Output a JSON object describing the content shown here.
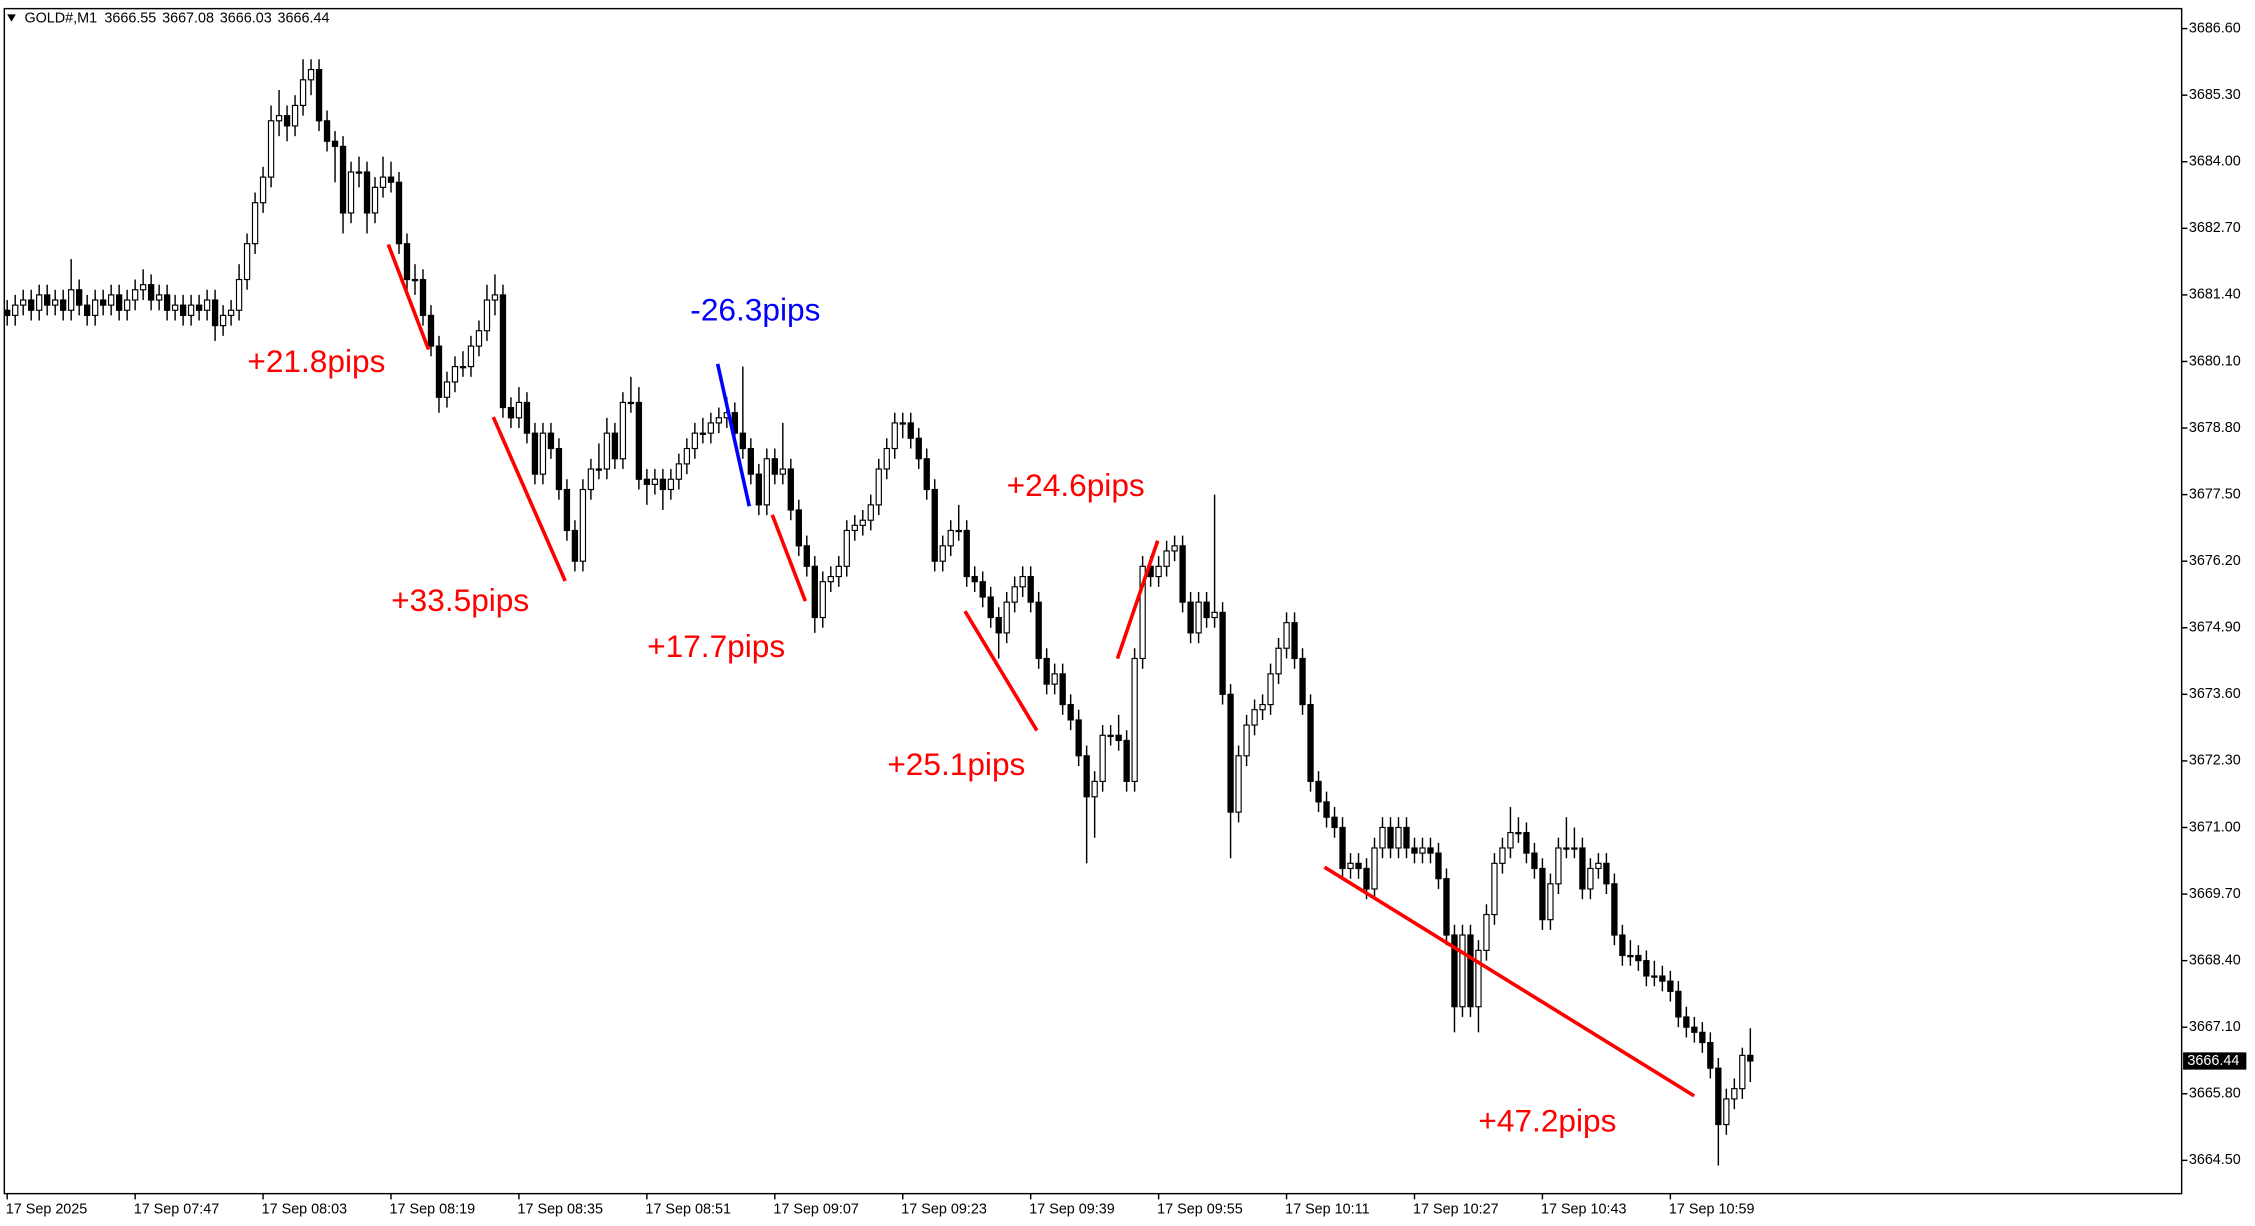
{
  "chart_data": {
    "type": "candlestick",
    "symbol": "GOLD#,M1",
    "bull_color": "#ffffff",
    "bear_color": "#000000",
    "wick_color": "#000000",
    "ylim": [
      3663.85,
      3686.99
    ],
    "yticks": [
      {
        "value": 3686.6,
        "label": "3686.60"
      },
      {
        "value": 3685.3,
        "label": "3685.30"
      },
      {
        "value": 3684.0,
        "label": "3684.00"
      },
      {
        "value": 3682.7,
        "label": "3682.70"
      },
      {
        "value": 3681.4,
        "label": "3681.40"
      },
      {
        "value": 3680.1,
        "label": "3680.10"
      },
      {
        "value": 3678.8,
        "label": "3678.80"
      },
      {
        "value": 3677.5,
        "label": "3677.50"
      },
      {
        "value": 3676.2,
        "label": "3676.20"
      },
      {
        "value": 3674.9,
        "label": "3674.90"
      },
      {
        "value": 3673.6,
        "label": "3673.60"
      },
      {
        "value": 3672.3,
        "label": "3672.30"
      },
      {
        "value": 3671.0,
        "label": "3671.00"
      },
      {
        "value": 3669.7,
        "label": "3669.70"
      },
      {
        "value": 3668.4,
        "label": "3668.40"
      },
      {
        "value": 3667.1,
        "label": "3667.10"
      },
      {
        "value": 3665.8,
        "label": "3665.80"
      },
      {
        "value": 3664.5,
        "label": "3664.50"
      }
    ],
    "x_labels": [
      "17 Sep 2025",
      "17 Sep 07:47",
      "17 Sep 08:03",
      "17 Sep 08:19",
      "17 Sep 08:35",
      "17 Sep 08:51",
      "17 Sep 09:07",
      "17 Sep 09:23",
      "17 Sep 09:39",
      "17 Sep 09:55",
      "17 Sep 10:11",
      "17 Sep 10:27",
      "17 Sep 10:43",
      "17 Sep 10:59"
    ],
    "annotations": [
      {
        "text": "+21.8pips",
        "color": "#ff0000"
      },
      {
        "text": "+33.5pips",
        "color": "#ff0000"
      },
      {
        "text": "-26.3pips",
        "color": "#0000ff"
      },
      {
        "text": "+17.7pips",
        "color": "#ff0000"
      },
      {
        "text": "+25.1pips",
        "color": "#ff0000"
      },
      {
        "text": "+24.6pips",
        "color": "#ff0000"
      },
      {
        "text": "+47.2pips",
        "color": "#ff0000"
      }
    ],
    "candles": [
      [
        3681.1,
        3681.3,
        3680.8,
        3681.0
      ],
      [
        3681.0,
        3681.4,
        3680.8,
        3681.2
      ],
      [
        3681.2,
        3681.5,
        3681.0,
        3681.3
      ],
      [
        3681.3,
        3681.5,
        3680.9,
        3681.1
      ],
      [
        3681.1,
        3681.6,
        3680.9,
        3681.4
      ],
      [
        3681.4,
        3681.6,
        3681.0,
        3681.2
      ],
      [
        3681.2,
        3681.5,
        3681.0,
        3681.3
      ],
      [
        3681.3,
        3681.5,
        3680.9,
        3681.1
      ],
      [
        3681.1,
        3682.1,
        3680.9,
        3681.5
      ],
      [
        3681.5,
        3681.7,
        3681.0,
        3681.2
      ],
      [
        3681.2,
        3681.4,
        3680.8,
        3681.0
      ],
      [
        3681.0,
        3681.5,
        3680.8,
        3681.3
      ],
      [
        3681.3,
        3681.5,
        3681.0,
        3681.2
      ],
      [
        3681.2,
        3681.6,
        3681.0,
        3681.4
      ],
      [
        3681.4,
        3681.6,
        3680.9,
        3681.1
      ],
      [
        3681.1,
        3681.5,
        3680.9,
        3681.3
      ],
      [
        3681.3,
        3681.7,
        3681.1,
        3681.5
      ],
      [
        3681.5,
        3681.9,
        3681.3,
        3681.6
      ],
      [
        3681.6,
        3681.8,
        3681.1,
        3681.3
      ],
      [
        3681.3,
        3681.6,
        3681.1,
        3681.4
      ],
      [
        3681.4,
        3681.6,
        3680.9,
        3681.1
      ],
      [
        3681.1,
        3681.4,
        3680.9,
        3681.2
      ],
      [
        3681.2,
        3681.4,
        3680.8,
        3681.0
      ],
      [
        3681.0,
        3681.4,
        3680.8,
        3681.2
      ],
      [
        3681.2,
        3681.4,
        3680.9,
        3681.1
      ],
      [
        3681.1,
        3681.5,
        3680.9,
        3681.3
      ],
      [
        3681.3,
        3681.5,
        3680.5,
        3680.8
      ],
      [
        3680.8,
        3681.2,
        3680.6,
        3681.0
      ],
      [
        3681.0,
        3681.3,
        3680.8,
        3681.1
      ],
      [
        3681.1,
        3682.0,
        3680.9,
        3681.7
      ],
      [
        3681.7,
        3682.6,
        3681.5,
        3682.4
      ],
      [
        3682.4,
        3683.4,
        3682.2,
        3683.2
      ],
      [
        3683.2,
        3683.9,
        3683.0,
        3683.7
      ],
      [
        3683.7,
        3685.1,
        3683.5,
        3684.8
      ],
      [
        3684.8,
        3685.4,
        3684.5,
        3684.9
      ],
      [
        3684.9,
        3685.1,
        3684.4,
        3684.7
      ],
      [
        3684.7,
        3685.3,
        3684.5,
        3685.1
      ],
      [
        3685.1,
        3686.0,
        3684.9,
        3685.6
      ],
      [
        3685.6,
        3686.0,
        3685.3,
        3685.8
      ],
      [
        3685.8,
        3686.0,
        3684.6,
        3684.8
      ],
      [
        3684.8,
        3685.0,
        3684.2,
        3684.4
      ],
      [
        3684.4,
        3684.6,
        3683.6,
        3684.3
      ],
      [
        3684.3,
        3684.5,
        3682.6,
        3683.0
      ],
      [
        3683.0,
        3684.0,
        3682.8,
        3683.8
      ],
      [
        3683.8,
        3684.1,
        3683.5,
        3683.8
      ],
      [
        3683.8,
        3684.0,
        3682.6,
        3683.0
      ],
      [
        3683.0,
        3683.7,
        3682.8,
        3683.5
      ],
      [
        3683.5,
        3684.1,
        3683.3,
        3683.7
      ],
      [
        3683.7,
        3684.0,
        3683.4,
        3683.6
      ],
      [
        3683.6,
        3683.8,
        3682.2,
        3682.4
      ],
      [
        3682.4,
        3682.6,
        3681.5,
        3681.7
      ],
      [
        3681.7,
        3682.0,
        3681.4,
        3681.7
      ],
      [
        3681.7,
        3681.9,
        3680.8,
        3681.0
      ],
      [
        3681.0,
        3681.2,
        3680.2,
        3680.4
      ],
      [
        3680.4,
        3680.6,
        3679.1,
        3679.4
      ],
      [
        3679.4,
        3679.9,
        3679.2,
        3679.7
      ],
      [
        3679.7,
        3680.2,
        3679.5,
        3680.0
      ],
      [
        3680.0,
        3680.3,
        3679.8,
        3680.0
      ],
      [
        3680.0,
        3680.6,
        3679.8,
        3680.4
      ],
      [
        3680.4,
        3680.9,
        3680.2,
        3680.7
      ],
      [
        3680.7,
        3681.6,
        3680.5,
        3681.3
      ],
      [
        3681.3,
        3681.8,
        3681.0,
        3681.4
      ],
      [
        3681.4,
        3681.6,
        3679.0,
        3679.2
      ],
      [
        3679.2,
        3679.4,
        3678.8,
        3679.0
      ],
      [
        3679.0,
        3679.6,
        3678.8,
        3679.3
      ],
      [
        3679.3,
        3679.5,
        3678.5,
        3678.7
      ],
      [
        3678.7,
        3678.9,
        3677.7,
        3677.9
      ],
      [
        3677.9,
        3678.9,
        3677.7,
        3678.7
      ],
      [
        3678.7,
        3678.9,
        3678.2,
        3678.4
      ],
      [
        3678.4,
        3678.6,
        3677.4,
        3677.6
      ],
      [
        3677.6,
        3677.8,
        3676.6,
        3676.8
      ],
      [
        3676.8,
        3677.0,
        3676.0,
        3676.2
      ],
      [
        3676.2,
        3677.8,
        3676.0,
        3677.6
      ],
      [
        3677.6,
        3678.2,
        3677.4,
        3678.0
      ],
      [
        3678.0,
        3678.5,
        3677.8,
        3678.0
      ],
      [
        3678.0,
        3679.0,
        3677.8,
        3678.7
      ],
      [
        3678.7,
        3678.9,
        3678.0,
        3678.2
      ],
      [
        3678.2,
        3679.5,
        3678.0,
        3679.3
      ],
      [
        3679.3,
        3679.8,
        3679.1,
        3679.3
      ],
      [
        3679.3,
        3679.6,
        3677.6,
        3677.8
      ],
      [
        3677.8,
        3678.0,
        3677.3,
        3677.7
      ],
      [
        3677.7,
        3678.0,
        3677.5,
        3677.8
      ],
      [
        3677.8,
        3678.0,
        3677.2,
        3677.6
      ],
      [
        3677.6,
        3678.0,
        3677.4,
        3677.8
      ],
      [
        3677.8,
        3678.3,
        3677.6,
        3678.1
      ],
      [
        3678.1,
        3678.6,
        3677.9,
        3678.4
      ],
      [
        3678.4,
        3678.9,
        3678.2,
        3678.7
      ],
      [
        3678.7,
        3679.0,
        3678.5,
        3678.7
      ],
      [
        3678.7,
        3679.1,
        3678.5,
        3678.9
      ],
      [
        3678.9,
        3679.2,
        3678.7,
        3679.0
      ],
      [
        3679.0,
        3679.4,
        3678.8,
        3679.1
      ],
      [
        3679.1,
        3679.3,
        3678.5,
        3678.7
      ],
      [
        3678.7,
        3680.0,
        3678.2,
        3678.4
      ],
      [
        3678.4,
        3678.6,
        3677.7,
        3677.9
      ],
      [
        3677.9,
        3678.1,
        3677.1,
        3677.3
      ],
      [
        3677.3,
        3678.4,
        3677.1,
        3678.2
      ],
      [
        3678.2,
        3678.4,
        3677.7,
        3677.9
      ],
      [
        3677.9,
        3678.9,
        3677.7,
        3678.0
      ],
      [
        3678.0,
        3678.2,
        3677.0,
        3677.2
      ],
      [
        3677.2,
        3677.4,
        3676.3,
        3676.5
      ],
      [
        3676.5,
        3676.7,
        3675.9,
        3676.1
      ],
      [
        3676.1,
        3676.3,
        3674.8,
        3675.1
      ],
      [
        3675.1,
        3676.0,
        3674.9,
        3675.8
      ],
      [
        3675.8,
        3676.1,
        3675.6,
        3675.9
      ],
      [
        3675.9,
        3676.3,
        3675.7,
        3676.1
      ],
      [
        3676.1,
        3677.0,
        3675.9,
        3676.8
      ],
      [
        3676.8,
        3677.1,
        3676.6,
        3676.9
      ],
      [
        3676.9,
        3677.2,
        3676.7,
        3677.0
      ],
      [
        3677.0,
        3677.5,
        3676.8,
        3677.3
      ],
      [
        3677.3,
        3678.2,
        3677.1,
        3678.0
      ],
      [
        3678.0,
        3678.6,
        3677.8,
        3678.4
      ],
      [
        3678.4,
        3679.1,
        3678.2,
        3678.9
      ],
      [
        3678.9,
        3679.1,
        3678.6,
        3678.9
      ],
      [
        3678.9,
        3679.1,
        3678.4,
        3678.6
      ],
      [
        3678.6,
        3678.8,
        3678.0,
        3678.2
      ],
      [
        3678.2,
        3678.4,
        3677.4,
        3677.6
      ],
      [
        3677.6,
        3677.8,
        3676.0,
        3676.2
      ],
      [
        3676.2,
        3676.7,
        3676.0,
        3676.5
      ],
      [
        3676.5,
        3677.0,
        3676.3,
        3676.8
      ],
      [
        3676.8,
        3677.3,
        3676.6,
        3676.8
      ],
      [
        3676.8,
        3677.0,
        3675.7,
        3675.9
      ],
      [
        3675.9,
        3676.1,
        3675.6,
        3675.8
      ],
      [
        3675.8,
        3676.0,
        3675.3,
        3675.5
      ],
      [
        3675.5,
        3675.7,
        3674.9,
        3675.1
      ],
      [
        3675.1,
        3675.3,
        3674.3,
        3674.8
      ],
      [
        3674.8,
        3675.6,
        3674.6,
        3675.4
      ],
      [
        3675.4,
        3675.9,
        3675.2,
        3675.7
      ],
      [
        3675.7,
        3676.1,
        3675.5,
        3675.9
      ],
      [
        3675.9,
        3676.1,
        3675.2,
        3675.4
      ],
      [
        3675.4,
        3675.6,
        3674.1,
        3674.3
      ],
      [
        3674.3,
        3674.5,
        3673.6,
        3673.8
      ],
      [
        3673.8,
        3674.2,
        3673.6,
        3674.0
      ],
      [
        3674.0,
        3674.2,
        3673.2,
        3673.4
      ],
      [
        3673.4,
        3673.6,
        3672.9,
        3673.1
      ],
      [
        3673.1,
        3673.3,
        3672.2,
        3672.4
      ],
      [
        3672.4,
        3672.6,
        3670.3,
        3671.6
      ],
      [
        3671.6,
        3672.1,
        3670.8,
        3671.9
      ],
      [
        3671.9,
        3673.0,
        3671.7,
        3672.8
      ],
      [
        3672.8,
        3673.0,
        3672.6,
        3672.8
      ],
      [
        3672.8,
        3673.2,
        3672.5,
        3672.7
      ],
      [
        3672.7,
        3672.9,
        3671.7,
        3671.9
      ],
      [
        3671.9,
        3674.5,
        3671.7,
        3674.3
      ],
      [
        3674.3,
        3676.3,
        3674.1,
        3676.1
      ],
      [
        3676.1,
        3676.3,
        3675.7,
        3675.9
      ],
      [
        3675.9,
        3676.3,
        3675.7,
        3676.1
      ],
      [
        3676.1,
        3676.6,
        3675.9,
        3676.4
      ],
      [
        3676.4,
        3676.7,
        3676.2,
        3676.5
      ],
      [
        3676.5,
        3676.7,
        3675.2,
        3675.4
      ],
      [
        3675.4,
        3675.6,
        3674.6,
        3674.8
      ],
      [
        3674.8,
        3675.6,
        3674.6,
        3675.4
      ],
      [
        3675.4,
        3675.6,
        3674.9,
        3675.1
      ],
      [
        3675.1,
        3677.5,
        3674.9,
        3675.2
      ],
      [
        3675.2,
        3675.4,
        3673.4,
        3673.6
      ],
      [
        3673.6,
        3673.8,
        3670.4,
        3671.3
      ],
      [
        3671.3,
        3672.6,
        3671.1,
        3672.4
      ],
      [
        3672.4,
        3673.2,
        3672.2,
        3673.0
      ],
      [
        3673.0,
        3673.5,
        3672.8,
        3673.3
      ],
      [
        3673.3,
        3673.6,
        3673.1,
        3673.4
      ],
      [
        3673.4,
        3674.2,
        3673.2,
        3674.0
      ],
      [
        3674.0,
        3674.7,
        3673.8,
        3674.5
      ],
      [
        3674.5,
        3675.2,
        3674.3,
        3675.0
      ],
      [
        3675.0,
        3675.2,
        3674.1,
        3674.3
      ],
      [
        3674.3,
        3674.5,
        3673.2,
        3673.4
      ],
      [
        3673.4,
        3673.6,
        3671.7,
        3671.9
      ],
      [
        3671.9,
        3672.1,
        3671.3,
        3671.5
      ],
      [
        3671.5,
        3671.7,
        3671.0,
        3671.2
      ],
      [
        3671.2,
        3671.4,
        3670.8,
        3671.0
      ],
      [
        3671.0,
        3671.2,
        3670.0,
        3670.2
      ],
      [
        3670.2,
        3670.5,
        3670.0,
        3670.3
      ],
      [
        3670.3,
        3670.5,
        3670.0,
        3670.2
      ],
      [
        3670.2,
        3670.4,
        3669.6,
        3669.8
      ],
      [
        3669.8,
        3670.8,
        3669.6,
        3670.6
      ],
      [
        3670.6,
        3671.2,
        3670.4,
        3671.0
      ],
      [
        3671.0,
        3671.2,
        3670.4,
        3670.6
      ],
      [
        3670.6,
        3671.2,
        3670.4,
        3671.0
      ],
      [
        3671.0,
        3671.2,
        3670.4,
        3670.6
      ],
      [
        3670.6,
        3670.8,
        3670.3,
        3670.5
      ],
      [
        3670.5,
        3670.8,
        3670.3,
        3670.6
      ],
      [
        3670.6,
        3670.8,
        3670.3,
        3670.5
      ],
      [
        3670.5,
        3670.7,
        3669.8,
        3670.0
      ],
      [
        3670.0,
        3670.2,
        3668.7,
        3668.9
      ],
      [
        3668.9,
        3669.1,
        3667.0,
        3667.5
      ],
      [
        3667.5,
        3669.1,
        3667.3,
        3668.9
      ],
      [
        3668.9,
        3669.1,
        3667.3,
        3667.5
      ],
      [
        3667.5,
        3668.8,
        3667.0,
        3668.6
      ],
      [
        3668.6,
        3669.5,
        3668.4,
        3669.3
      ],
      [
        3669.3,
        3670.5,
        3669.1,
        3670.3
      ],
      [
        3670.3,
        3670.8,
        3670.1,
        3670.6
      ],
      [
        3670.6,
        3671.4,
        3670.4,
        3670.9
      ],
      [
        3670.9,
        3671.2,
        3670.7,
        3670.9
      ],
      [
        3670.9,
        3671.1,
        3670.3,
        3670.5
      ],
      [
        3670.5,
        3670.7,
        3670.0,
        3670.2
      ],
      [
        3670.2,
        3670.4,
        3669.0,
        3669.2
      ],
      [
        3669.2,
        3670.1,
        3669.0,
        3669.9
      ],
      [
        3669.9,
        3670.8,
        3669.7,
        3670.6
      ],
      [
        3670.6,
        3671.2,
        3670.4,
        3670.6
      ],
      [
        3670.6,
        3671.0,
        3670.4,
        3670.6
      ],
      [
        3670.6,
        3670.8,
        3669.6,
        3669.8
      ],
      [
        3669.8,
        3670.4,
        3669.6,
        3670.2
      ],
      [
        3670.2,
        3670.5,
        3670.0,
        3670.3
      ],
      [
        3670.3,
        3670.5,
        3669.7,
        3669.9
      ],
      [
        3669.9,
        3670.1,
        3668.7,
        3668.9
      ],
      [
        3668.9,
        3669.1,
        3668.3,
        3668.5
      ],
      [
        3668.5,
        3668.8,
        3668.3,
        3668.5
      ],
      [
        3668.5,
        3668.7,
        3668.2,
        3668.4
      ],
      [
        3668.4,
        3668.6,
        3667.9,
        3668.1
      ],
      [
        3668.1,
        3668.4,
        3667.9,
        3668.1
      ],
      [
        3668.1,
        3668.3,
        3667.8,
        3668.0
      ],
      [
        3668.0,
        3668.2,
        3667.6,
        3667.8
      ],
      [
        3667.8,
        3668.0,
        3667.1,
        3667.3
      ],
      [
        3667.3,
        3667.5,
        3666.9,
        3667.1
      ],
      [
        3667.1,
        3667.3,
        3666.8,
        3667.0
      ],
      [
        3667.0,
        3667.2,
        3666.6,
        3666.8
      ],
      [
        3666.8,
        3667.0,
        3666.1,
        3666.3
      ],
      [
        3666.3,
        3666.5,
        3664.4,
        3665.2
      ],
      [
        3665.2,
        3665.9,
        3665.0,
        3665.7
      ],
      [
        3665.7,
        3666.1,
        3665.5,
        3665.9
      ],
      [
        3665.9,
        3666.7,
        3665.7,
        3666.55
      ],
      [
        3666.55,
        3667.08,
        3666.03,
        3666.44
      ]
    ]
  }
}
